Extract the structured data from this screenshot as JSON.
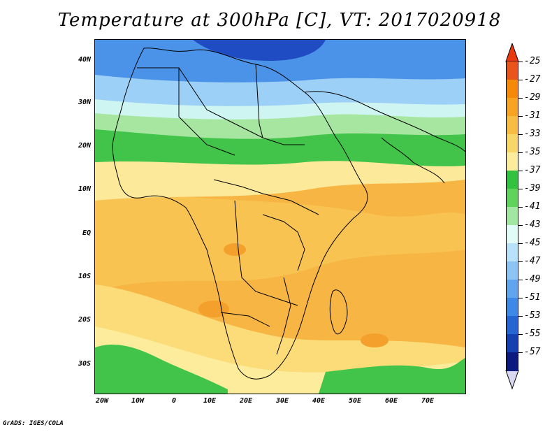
{
  "title": "Temperature at 300hPa [C], VT: 2017020918",
  "footer": "GrADS: IGES/COLA",
  "map": {
    "lat_labels": [
      "40N",
      "30N",
      "20N",
      "10N",
      "EQ",
      "10S",
      "20S",
      "30S"
    ],
    "lon_labels": [
      "20W",
      "10W",
      "0",
      "10E",
      "20E",
      "30E",
      "40E",
      "50E",
      "60E",
      "70E"
    ]
  },
  "legend": {
    "labels": [
      "-25",
      "-27",
      "-29",
      "-31",
      "-33",
      "-35",
      "-37",
      "-39",
      "-41",
      "-43",
      "-45",
      "-47",
      "-49",
      "-51",
      "-53",
      "-55",
      "-57"
    ],
    "colors": [
      "#e8541a",
      "#f58a0a",
      "#f6a422",
      "#f7bd42",
      "#f9d668",
      "#fcec9c",
      "#33c140",
      "#5ed55a",
      "#a2e7a0",
      "#e3fbf8",
      "#b8e2fa",
      "#8cc4f6",
      "#62a5ef",
      "#3e88e6",
      "#2666d2",
      "#1540b0",
      "#0c1a80"
    ],
    "top_triangle_color": "#e8380e",
    "bottom_triangle_color": "#d7d7ef"
  },
  "colors": {
    "orange": "#f7b544",
    "light_orange": "#f9cf66",
    "yellow": "#fce99a",
    "green": "#42c44a",
    "light_green": "#a6e6a0",
    "cyan": "#cff5f2",
    "light_blue": "#9cd0f6",
    "blue": "#4b93e8",
    "dark_blue": "#1f4cc2"
  }
}
